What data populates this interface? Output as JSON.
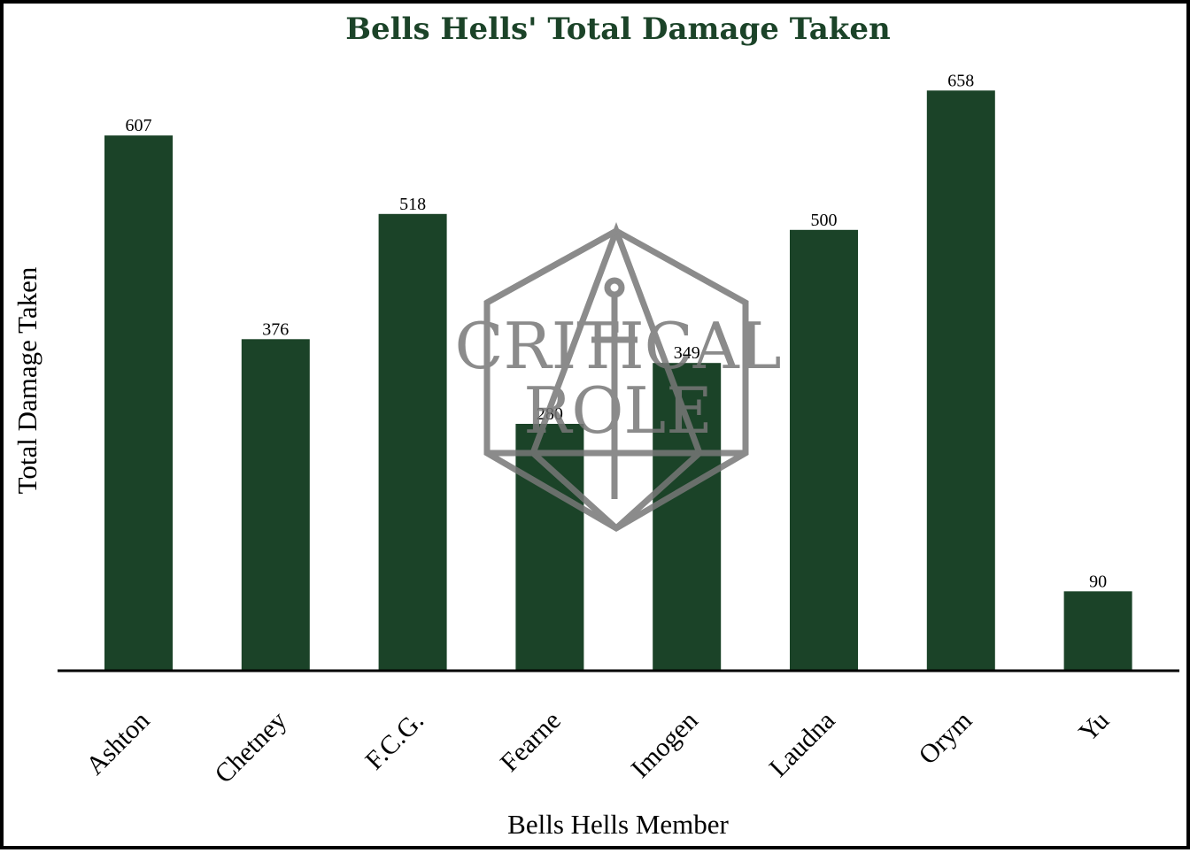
{
  "chart_data": {
    "type": "bar",
    "title": "Bells Hells' Total Damage Taken",
    "xlabel": "Bells Hells Member",
    "ylabel": "Total Damage Taken",
    "categories": [
      "Ashton",
      "Chetney",
      "F.C.G.",
      "Fearne",
      "Imogen",
      "Laudna",
      "Orym",
      "Yu"
    ],
    "values": [
      607,
      376,
      518,
      280,
      349,
      500,
      658,
      90
    ],
    "ylim": [
      0,
      700
    ],
    "grid": false,
    "legend": "none",
    "bar_color": "#1b4328",
    "title_color": "#1b4328"
  },
  "watermark": {
    "line1": "CRITICAL",
    "line2": "ROLE",
    "icon": "d20-sword-icon"
  }
}
